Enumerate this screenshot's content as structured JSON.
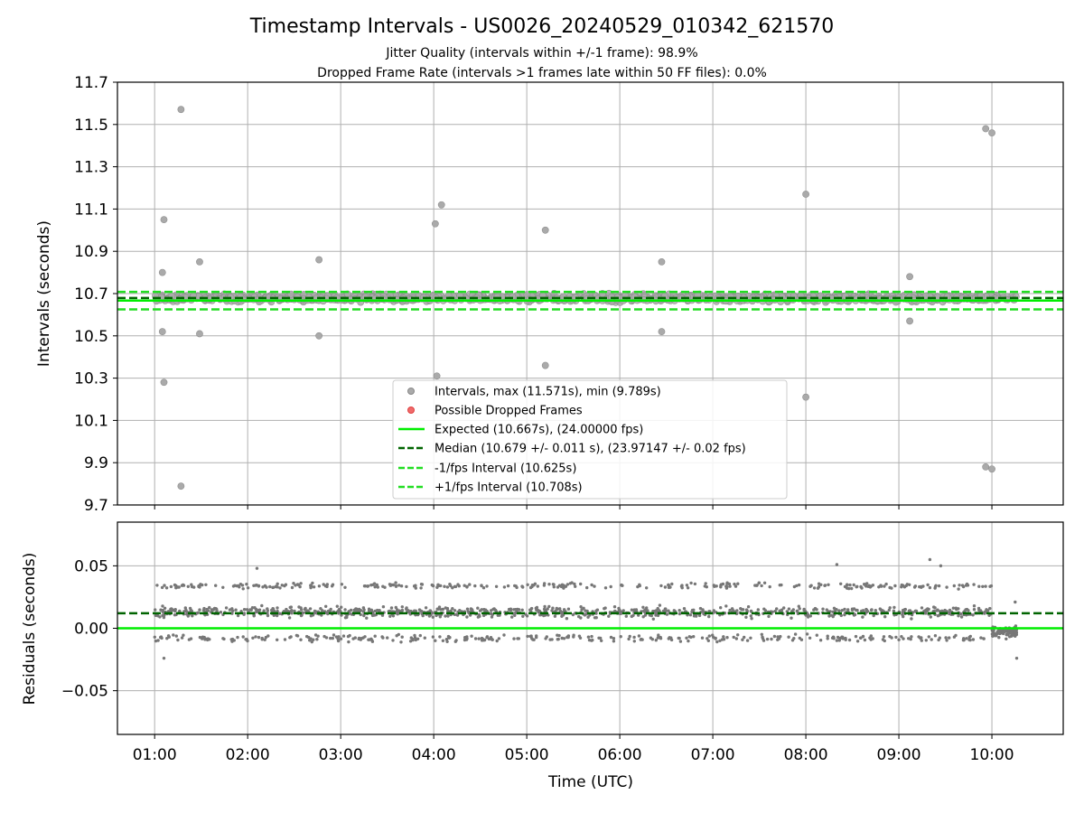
{
  "chart_data": [
    {
      "type": "scatter",
      "title": "Timestamp Intervals - US0026_20240529_010342_621570",
      "subtitle_lines": [
        "Jitter Quality (intervals within +/-1 frame): 98.9%",
        "Dropped Frame Rate (intervals >1 frames late within 50 FF files): 0.0%"
      ],
      "xlabel": "",
      "ylabel": "Intervals (seconds)",
      "ylim": [
        9.7,
        11.7
      ],
      "yticks": [
        "9.7",
        "9.9",
        "10.1",
        "10.3",
        "10.5",
        "10.7",
        "10.9",
        "11.1",
        "11.3",
        "11.5",
        "11.7"
      ],
      "xlim": [
        "00:36",
        "10:46"
      ],
      "grid": true,
      "legend_placement": "lower-center",
      "legend": [
        {
          "label": "Intervals, max (11.571s), min (9.789s)",
          "kind": "dot",
          "color": "#aaaaaa"
        },
        {
          "label": "Possible Dropped Frames",
          "kind": "dot",
          "color": "#f06a6a"
        },
        {
          "label": "Expected (10.667s), (24.00000 fps)",
          "kind": "line",
          "color": "#00ee00"
        },
        {
          "label": "Median (10.679 +/- 0.011 s), (23.97147 +/- 0.02 fps)",
          "kind": "dash",
          "color": "#006400"
        },
        {
          "label": "-1/fps Interval (10.625s)",
          "kind": "dash",
          "color": "#22dd22"
        },
        {
          "label": "+1/fps Interval (10.708s)",
          "kind": "dash",
          "color": "#22dd22"
        }
      ],
      "reference_lines": [
        {
          "name": "expected",
          "y": 10.667,
          "style": "solid",
          "color": "#00ee00"
        },
        {
          "name": "median",
          "y": 10.679,
          "style": "dashed",
          "color": "#006400"
        },
        {
          "name": "minus1",
          "y": 10.625,
          "style": "dashed",
          "color": "#22dd22"
        },
        {
          "name": "plus1",
          "y": 10.708,
          "style": "dashed",
          "color": "#22dd22"
        }
      ],
      "band": {
        "x_start": "01:00",
        "x_end": "10:16",
        "y_center": 10.679,
        "y_spread": 0.025
      },
      "outliers": [
        {
          "x": "01:05",
          "y": 10.8
        },
        {
          "x": "01:06",
          "y": 11.05
        },
        {
          "x": "01:05",
          "y": 10.52
        },
        {
          "x": "01:06",
          "y": 10.28
        },
        {
          "x": "01:17",
          "y": 11.571
        },
        {
          "x": "01:17",
          "y": 9.789
        },
        {
          "x": "01:29",
          "y": 10.85
        },
        {
          "x": "01:29",
          "y": 10.51
        },
        {
          "x": "02:46",
          "y": 10.86
        },
        {
          "x": "02:46",
          "y": 10.5
        },
        {
          "x": "04:01",
          "y": 11.03
        },
        {
          "x": "04:05",
          "y": 11.12
        },
        {
          "x": "04:02",
          "y": 10.31
        },
        {
          "x": "05:12",
          "y": 11.0
        },
        {
          "x": "05:12",
          "y": 10.36
        },
        {
          "x": "06:27",
          "y": 10.85
        },
        {
          "x": "06:27",
          "y": 10.52
        },
        {
          "x": "08:00",
          "y": 11.17
        },
        {
          "x": "08:00",
          "y": 10.21
        },
        {
          "x": "09:07",
          "y": 10.78
        },
        {
          "x": "09:07",
          "y": 10.57
        },
        {
          "x": "09:56",
          "y": 11.48
        },
        {
          "x": "10:00",
          "y": 11.46
        },
        {
          "x": "09:56",
          "y": 9.88
        },
        {
          "x": "10:00",
          "y": 9.87
        }
      ]
    },
    {
      "type": "scatter",
      "title": "",
      "xlabel": "Time (UTC)",
      "ylabel": "Residuals (seconds)",
      "ylim": [
        -0.085,
        0.085
      ],
      "yticks": [
        "−0.05",
        "0.00",
        "0.05"
      ],
      "xticks": [
        "01:00",
        "02:00",
        "03:00",
        "04:00",
        "05:00",
        "06:00",
        "07:00",
        "08:00",
        "09:00",
        "10:00"
      ],
      "xlim": [
        "00:36",
        "10:46"
      ],
      "grid": true,
      "reference_lines": [
        {
          "name": "zero",
          "y": 0.0,
          "style": "solid",
          "color": "#00ee00"
        },
        {
          "name": "median",
          "y": 0.012,
          "style": "dashed",
          "color": "#006400"
        }
      ],
      "clusters": [
        {
          "label": "low",
          "y_center": -0.008,
          "y_spread": 0.004
        },
        {
          "label": "main",
          "y_center": 0.013,
          "y_spread": 0.006
        },
        {
          "label": "high",
          "y_center": 0.034,
          "y_spread": 0.003
        }
      ],
      "tail": {
        "x_start": "10:00",
        "x_end": "10:16",
        "y_center": -0.003,
        "y_spread": 0.006
      },
      "outliers": [
        {
          "x": "02:06",
          "y": 0.048
        },
        {
          "x": "08:20",
          "y": 0.051
        },
        {
          "x": "09:20",
          "y": 0.055
        },
        {
          "x": "09:27",
          "y": 0.05
        },
        {
          "x": "01:06",
          "y": -0.024
        },
        {
          "x": "10:16",
          "y": -0.024
        },
        {
          "x": "10:15",
          "y": 0.021
        }
      ],
      "marker_color": "#777777"
    }
  ]
}
